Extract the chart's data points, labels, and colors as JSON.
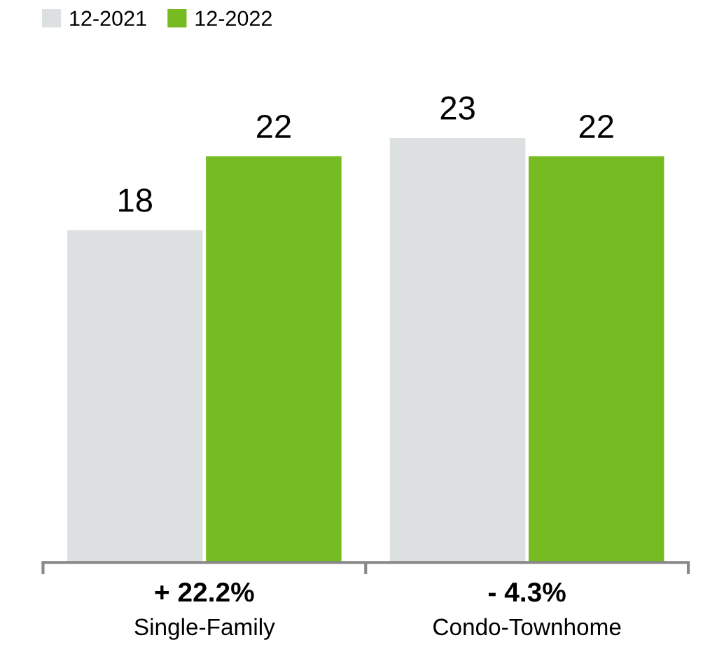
{
  "chart_data": {
    "type": "bar",
    "categories": [
      "Single-Family",
      "Condo-Townhome"
    ],
    "series": [
      {
        "name": "12-2021",
        "color": "#dde0e0",
        "values": [
          18,
          23
        ]
      },
      {
        "name": "12-2022",
        "color": "#77bb22",
        "values": [
          22,
          22
        ]
      }
    ],
    "data_labels": true,
    "legend": "top left",
    "grid": false,
    "annotations": [
      "+ 22.2%",
      "- 4.3%"
    ]
  }
}
